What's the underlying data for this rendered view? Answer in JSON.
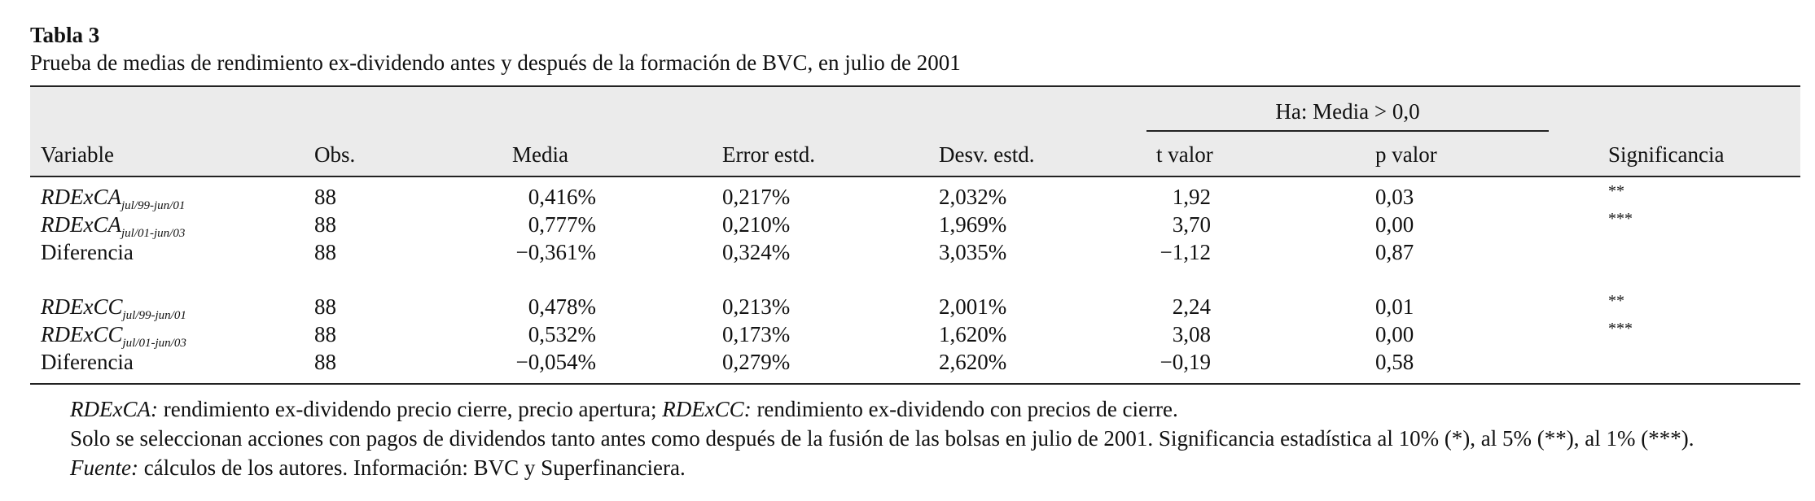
{
  "caption": {
    "label": "Tabla 3",
    "title": "Prueba de medias de rendimiento ex-dividendo antes y después de la formación de BVC, en julio de 2001"
  },
  "table": {
    "group_header": "Ha: Media > 0,0",
    "columns": [
      "Variable",
      "Obs.",
      "Media",
      "Error estd.",
      "Desv. estd.",
      "t valor",
      "p valor",
      "Significancia"
    ],
    "rows": [
      {
        "variable": {
          "name": "RDExCA",
          "sub": "jul/99-jun/01"
        },
        "cells": [
          "88",
          "0,416%",
          "0,217%",
          "2,032%",
          "1,92",
          "0,03"
        ],
        "significance": "**"
      },
      {
        "variable": {
          "name": "RDExCA",
          "sub": "jul/01-jun/03"
        },
        "cells": [
          "88",
          "0,777%",
          "0,210%",
          "1,969%",
          "3,70",
          "0,00"
        ],
        "significance": "***"
      },
      {
        "variable": "Diferencia",
        "cells": [
          "88",
          "−0,361%",
          "0,324%",
          "3,035%",
          "−1,12",
          "0,87"
        ]
      },
      {
        "variable": {
          "name": "RDExCC",
          "sub": "jul/99-jun/01"
        },
        "cells": [
          "88",
          "0,478%",
          "0,213%",
          "2,001%",
          "2,24",
          "0,01"
        ],
        "significance": "**"
      },
      {
        "variable": {
          "name": "RDExCC",
          "sub": "jul/01-jun/03"
        },
        "cells": [
          "88",
          "0,532%",
          "0,173%",
          "1,620%",
          "3,08",
          "0,00"
        ],
        "significance": "***"
      },
      {
        "variable": "Diferencia",
        "cells": [
          "88",
          "−0,054%",
          "0,279%",
          "2,620%",
          "−0,19",
          "0,58"
        ]
      }
    ]
  },
  "notes": [
    [
      {
        "italic": "RDExCA:"
      },
      {
        "text": " rendimiento ex-dividendo precio cierre, precio apertura; "
      },
      {
        "italic": "RDExCC:"
      },
      {
        "text": " rendimiento ex-dividendo con precios de cierre."
      }
    ],
    [
      {
        "text": "Solo se seleccionan acciones con pagos de dividendos tanto antes como después de la fusión de las bolsas en julio de 2001. Significancia estadística al 10% (*), al 5% (**), al 1% (***)."
      }
    ],
    [
      {
        "italic": "Fuente:"
      },
      {
        "text": " cálculos de los autores. Información: BVC y Superfinanciera."
      }
    ]
  ]
}
